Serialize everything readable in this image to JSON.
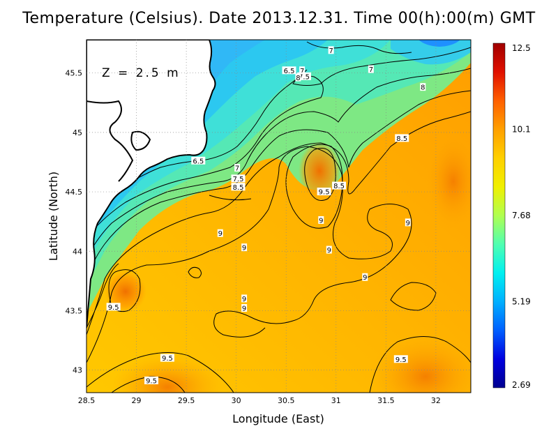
{
  "title": "Temperature (Celsius). Date 2013.12.31. Time 00(h):00(m) GMT",
  "depth_label": "Z = 2.5 m",
  "x_axis": {
    "label": "Longitude (East)",
    "range": [
      28.5,
      32.35
    ],
    "ticks": [
      "28.5",
      "29",
      "29.5",
      "30",
      "30.5",
      "31",
      "31.5",
      "32"
    ]
  },
  "y_axis": {
    "label": "Latitude (North)",
    "range": [
      42.81,
      45.78
    ],
    "ticks": [
      "43",
      "43.5",
      "44",
      "44.5",
      "45",
      "45.5"
    ]
  },
  "grid": "dotted",
  "colorbar": {
    "min": 2.69,
    "max": 12.5,
    "ticks": [
      "12.5",
      "10.1",
      "7.68",
      "5.19",
      "2.69"
    ],
    "colors": [
      "#a00000",
      "#e01000",
      "#ff6000",
      "#ffa000",
      "#ffd000",
      "#f0f000",
      "#b0ff50",
      "#50ffb0",
      "#00f0f0",
      "#00b0ff",
      "#0060ff",
      "#0000e0",
      "#000090"
    ]
  },
  "chart_data": {
    "type": "heatmap",
    "variable": "Temperature (Celsius)",
    "contour_labels": [
      {
        "text": "7",
        "lon": 30.95,
        "lat": 45.69
      },
      {
        "text": "7",
        "lon": 31.35,
        "lat": 45.53
      },
      {
        "text": "6.5",
        "lon": 30.53,
        "lat": 45.52
      },
      {
        "text": "7",
        "lon": 30.66,
        "lat": 45.52
      },
      {
        "text": "7.5",
        "lon": 30.68,
        "lat": 45.47
      },
      {
        "text": "8",
        "lon": 30.62,
        "lat": 45.46
      },
      {
        "text": "8",
        "lon": 31.87,
        "lat": 45.38
      },
      {
        "text": "8.5",
        "lon": 31.66,
        "lat": 44.95
      },
      {
        "text": "6.5",
        "lon": 29.62,
        "lat": 44.76
      },
      {
        "text": "7",
        "lon": 30.01,
        "lat": 44.7
      },
      {
        "text": "7.5",
        "lon": 30.02,
        "lat": 44.61
      },
      {
        "text": "8.5",
        "lon": 30.02,
        "lat": 44.54
      },
      {
        "text": "8.5",
        "lon": 31.03,
        "lat": 44.55
      },
      {
        "text": "9.5",
        "lon": 30.88,
        "lat": 44.5
      },
      {
        "text": "9",
        "lon": 31.72,
        "lat": 44.24
      },
      {
        "text": "9",
        "lon": 30.85,
        "lat": 44.26
      },
      {
        "text": "9",
        "lon": 29.84,
        "lat": 44.15
      },
      {
        "text": "9",
        "lon": 30.08,
        "lat": 44.03
      },
      {
        "text": "9",
        "lon": 30.93,
        "lat": 44.01
      },
      {
        "text": "9",
        "lon": 31.29,
        "lat": 43.78
      },
      {
        "text": "9",
        "lon": 30.08,
        "lat": 43.6
      },
      {
        "text": "9",
        "lon": 30.08,
        "lat": 43.52
      },
      {
        "text": "9.5",
        "lon": 28.77,
        "lat": 43.53
      },
      {
        "text": "9.5",
        "lon": 29.31,
        "lat": 43.1
      },
      {
        "text": "9.5",
        "lon": 31.65,
        "lat": 43.09
      },
      {
        "text": "9.5",
        "lon": 29.15,
        "lat": 42.91
      }
    ]
  }
}
